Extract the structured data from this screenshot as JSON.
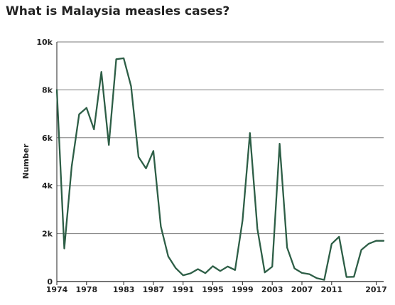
{
  "chart_data": {
    "type": "line",
    "title": "What is Malaysia measles cases?",
    "xlabel": "",
    "ylabel": "Number",
    "xlim": [
      1974,
      2018
    ],
    "ylim": [
      0,
      10000
    ],
    "x_ticks": [
      1974,
      1978,
      1983,
      1987,
      1991,
      1995,
      1999,
      2003,
      2007,
      2011,
      2017
    ],
    "y_ticks": [
      0,
      2000,
      4000,
      6000,
      8000,
      10000
    ],
    "y_tick_labels": [
      "0",
      "2k",
      "4k",
      "6k",
      "8k",
      "10k"
    ],
    "grid": true,
    "line_color": "#2d5e46",
    "series": [
      {
        "x": [
          1974,
          1975,
          1976,
          1977,
          1978,
          1979,
          1980,
          1981,
          1982,
          1983,
          1984,
          1985,
          1986,
          1987,
          1988,
          1989,
          1990,
          1991,
          1992,
          1993,
          1994,
          1995,
          1996,
          1997,
          1998,
          1999,
          2000,
          2001,
          2002,
          2003,
          2004,
          2005,
          2006,
          2007,
          2008,
          2009,
          2010,
          2011,
          2012,
          2013,
          2014,
          2015,
          2016,
          2017,
          2018
        ],
        "values": [
          8000,
          1380,
          4800,
          6980,
          7250,
          6350,
          8750,
          5700,
          9280,
          9320,
          8150,
          5200,
          4720,
          5450,
          2300,
          1050,
          560,
          260,
          340,
          520,
          350,
          640,
          440,
          630,
          480,
          2550,
          6200,
          2200,
          380,
          620,
          5750,
          1420,
          550,
          360,
          310,
          140,
          70,
          1570,
          1870,
          190,
          200,
          1320,
          1580,
          1700,
          1700
        ]
      }
    ]
  }
}
